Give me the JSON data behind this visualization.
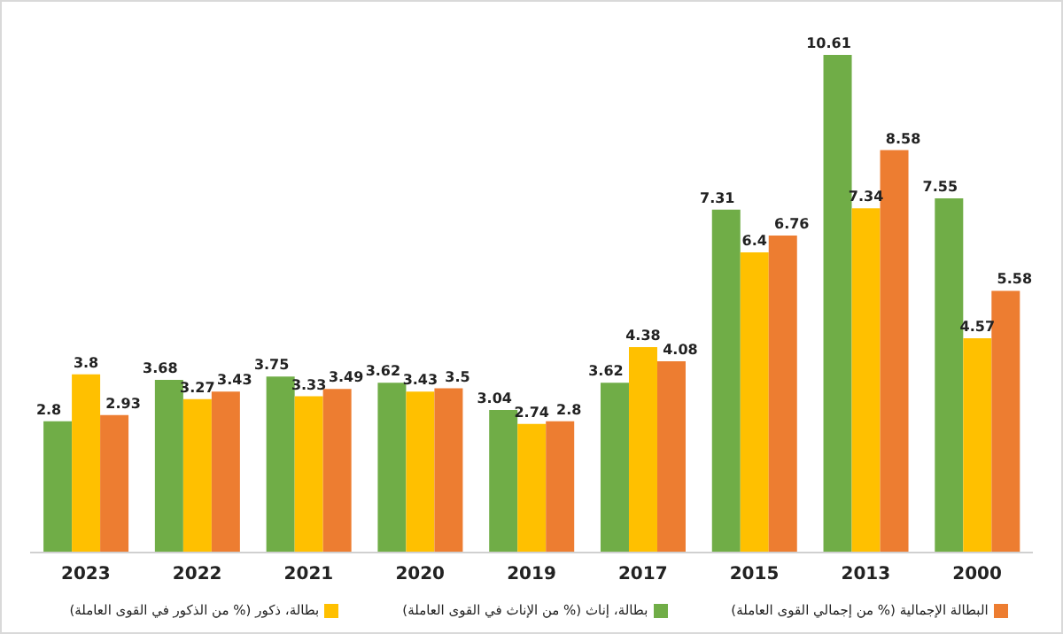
{
  "chart_data": {
    "type": "bar",
    "categories": [
      "2023",
      "2022",
      "2021",
      "2020",
      "2019",
      "2017",
      "2015",
      "2013",
      "2000"
    ],
    "series": [
      {
        "name": "بطالة، إناث (% من الإناث في القوى العاملة)",
        "color": "#70ad47",
        "values": [
          2.8,
          3.68,
          3.75,
          3.62,
          3.04,
          3.62,
          7.31,
          10.61,
          7.55
        ]
      },
      {
        "name": "بطالة، ذكور (% من الذكور في القوى العاملة)",
        "color": "#ffc000",
        "values": [
          3.8,
          3.27,
          3.33,
          3.43,
          2.74,
          4.38,
          6.4,
          7.34,
          4.57
        ]
      },
      {
        "name": "البطالة الإجمالية (% من إجمالي القوى العاملة)",
        "color": "#ed7d31",
        "values": [
          2.93,
          3.43,
          3.49,
          3.5,
          2.8,
          4.08,
          6.76,
          8.58,
          5.58
        ]
      }
    ],
    "data_labels": true,
    "grid": false,
    "legend": "bottom"
  }
}
